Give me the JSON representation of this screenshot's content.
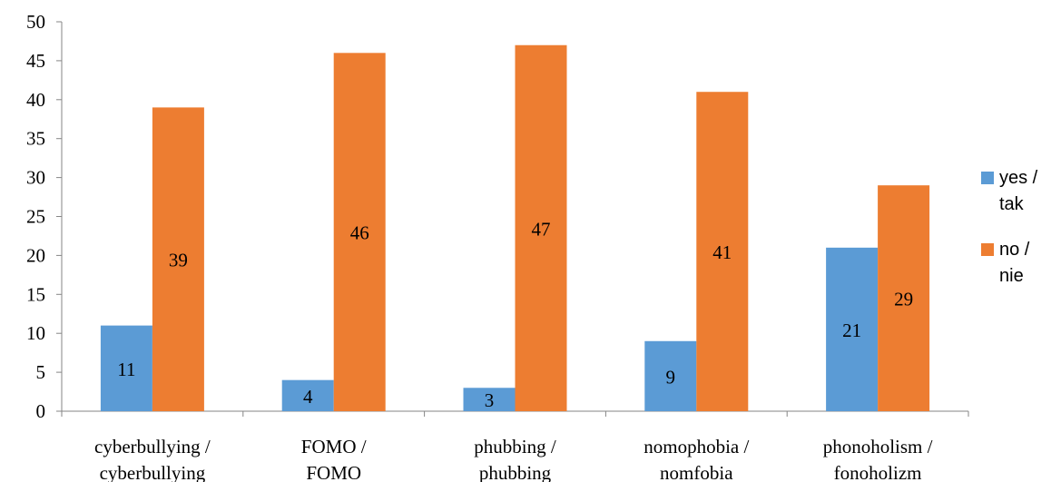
{
  "chart_data": {
    "type": "bar",
    "title": "",
    "xlabel": "",
    "ylabel": "",
    "categories": [
      [
        "cyberbullying /",
        "cyberbullying"
      ],
      [
        "FOMO /",
        "FOMO"
      ],
      [
        "phubbing /",
        "phubbing"
      ],
      [
        "nomophobia /",
        "nomfobia"
      ],
      [
        "phonoholism /",
        "fonoholizm"
      ]
    ],
    "series": [
      {
        "name": [
          "yes /",
          "tak"
        ],
        "color": "#5b9bd5",
        "values": [
          11,
          4,
          3,
          9,
          21
        ]
      },
      {
        "name": [
          "no /",
          "nie"
        ],
        "color": "#ed7d31",
        "values": [
          39,
          46,
          47,
          41,
          29
        ]
      }
    ],
    "y_ticks": [
      "0",
      "5",
      "10",
      "15",
      "20",
      "25",
      "30",
      "35",
      "40",
      "45",
      "50"
    ],
    "ylim": [
      0,
      50
    ],
    "grid": false,
    "data_labels": true,
    "legend_position": "right"
  }
}
